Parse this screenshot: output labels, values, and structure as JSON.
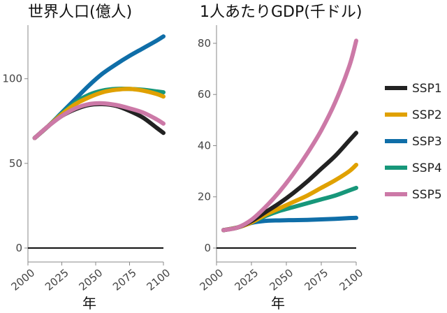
{
  "chart_data": [
    {
      "type": "line",
      "title": "世界人口(億人)",
      "xlabel": "年",
      "ylabel": "",
      "xlim": [
        2000,
        2100
      ],
      "ylim": [
        0,
        130
      ],
      "x_ticks": [
        2000,
        2025,
        2050,
        2075,
        2100
      ],
      "y_ticks": [
        0,
        50,
        100
      ],
      "grid": false,
      "series": [
        {
          "name": "SSP1",
          "color": "#222222",
          "x": [
            2005,
            2015,
            2025,
            2035,
            2045,
            2055,
            2065,
            2075,
            2085,
            2095,
            2100
          ],
          "values": [
            65,
            72,
            78,
            82,
            84.5,
            85,
            84,
            81,
            77,
            71,
            68
          ]
        },
        {
          "name": "SSP2",
          "color": "#e0a100",
          "x": [
            2005,
            2015,
            2025,
            2035,
            2045,
            2055,
            2065,
            2075,
            2085,
            2095,
            2100
          ],
          "values": [
            65,
            72,
            79,
            85,
            89,
            92,
            93.5,
            94,
            93,
            91,
            89.5
          ]
        },
        {
          "name": "SSP3",
          "color": "#0f6ea8",
          "x": [
            2005,
            2015,
            2025,
            2035,
            2045,
            2055,
            2065,
            2075,
            2085,
            2095,
            2100
          ],
          "values": [
            65,
            72,
            80,
            88,
            96,
            103,
            108.5,
            113.5,
            118,
            122.5,
            125
          ]
        },
        {
          "name": "SSP4",
          "color": "#17977a",
          "x": [
            2005,
            2015,
            2025,
            2035,
            2045,
            2055,
            2065,
            2075,
            2085,
            2095,
            2100
          ],
          "values": [
            65,
            72,
            79.5,
            86,
            90.5,
            93,
            94,
            94,
            93.5,
            92.5,
            92
          ]
        },
        {
          "name": "SSP5",
          "color": "#cc79a7",
          "x": [
            2005,
            2015,
            2025,
            2035,
            2045,
            2055,
            2065,
            2075,
            2085,
            2095,
            2100
          ],
          "values": [
            65,
            72,
            78,
            82.5,
            85,
            85.5,
            84.5,
            82.5,
            80,
            76,
            73.5
          ]
        }
      ]
    },
    {
      "type": "line",
      "title": "1人あたりGDP(千ドル)",
      "xlabel": "年",
      "ylabel": "",
      "xlim": [
        2000,
        2100
      ],
      "ylim": [
        0,
        86
      ],
      "x_ticks": [
        2000,
        2025,
        2050,
        2075,
        2100
      ],
      "y_ticks": [
        0,
        20,
        40,
        60,
        80
      ],
      "grid": false,
      "series": [
        {
          "name": "SSP1",
          "color": "#222222",
          "x": [
            2005,
            2015,
            2025,
            2035,
            2045,
            2055,
            2065,
            2075,
            2085,
            2095,
            2100
          ],
          "values": [
            7,
            8,
            10.5,
            14,
            17.5,
            21.5,
            26,
            31,
            36,
            42,
            45
          ]
        },
        {
          "name": "SSP2",
          "color": "#e0a100",
          "x": [
            2005,
            2015,
            2025,
            2035,
            2045,
            2055,
            2065,
            2075,
            2085,
            2095,
            2100
          ],
          "values": [
            7,
            8,
            10,
            13,
            15.5,
            18,
            20.5,
            23.5,
            26.5,
            30,
            32.5
          ]
        },
        {
          "name": "SSP3",
          "color": "#0f6ea8",
          "x": [
            2005,
            2015,
            2025,
            2035,
            2045,
            2055,
            2065,
            2075,
            2085,
            2095,
            2100
          ],
          "values": [
            7,
            8,
            9.8,
            10.6,
            10.8,
            10.9,
            11,
            11.2,
            11.4,
            11.7,
            11.8
          ]
        },
        {
          "name": "SSP4",
          "color": "#17977a",
          "x": [
            2005,
            2015,
            2025,
            2035,
            2045,
            2055,
            2065,
            2075,
            2085,
            2095,
            2100
          ],
          "values": [
            7,
            8,
            10,
            12.5,
            14.5,
            16,
            17.5,
            19,
            20.5,
            22.5,
            23.5
          ]
        },
        {
          "name": "SSP5",
          "color": "#cc79a7",
          "x": [
            2005,
            2015,
            2025,
            2035,
            2045,
            2055,
            2065,
            2075,
            2085,
            2095,
            2100
          ],
          "values": [
            7,
            8,
            11,
            16,
            22,
            29,
            37,
            46,
            57,
            71,
            81
          ]
        }
      ]
    }
  ],
  "legend": {
    "placement": "right",
    "items": [
      {
        "label": "SSP1",
        "color": "#222222"
      },
      {
        "label": "SSP2",
        "color": "#e0a100"
      },
      {
        "label": "SSP3",
        "color": "#0f6ea8"
      },
      {
        "label": "SSP4",
        "color": "#17977a"
      },
      {
        "label": "SSP5",
        "color": "#cc79a7"
      }
    ]
  }
}
